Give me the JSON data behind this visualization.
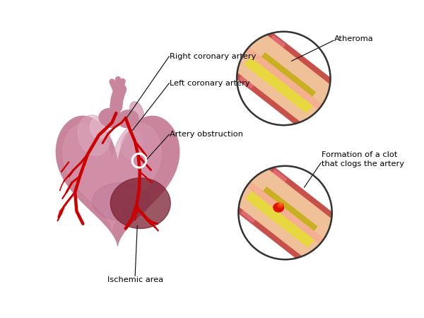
{
  "bg_color": "#ffffff",
  "heart_color_main": "#c8859c",
  "heart_color_light": "#d898b0",
  "heart_color_dark": "#a06880",
  "heart_color_shadow": "#b87090",
  "ischemic_color": "#7a2030",
  "artery_red": "#cc0000",
  "vessel_wall_outer": "#c8504a",
  "vessel_wall_mid": "#e8906a",
  "vessel_lumen": "#f0c098",
  "vessel_pink_end": "#e06870",
  "atheroma_yellow": "#e8d840",
  "atheroma_dark": "#c8b020",
  "clot_red": "#dd1100",
  "clot_bright": "#ff3300",
  "circle_stroke": "#333333",
  "ann_line_color": "#111111",
  "text_color": "#000000",
  "labels": {
    "right_coronary": "Right coronary artery",
    "left_coronary": "Left coronary artery",
    "artery_obstruction": "Artery obstruction",
    "ischemic_area": "Ischemic area",
    "atheroma": "Atheroma",
    "clot_formation": "Formation of a clot\nthat clogs the artery"
  },
  "c1x": 0.735,
  "c1y": 0.755,
  "c1r": 0.148,
  "c2x": 0.74,
  "c2y": 0.33,
  "c2r": 0.148,
  "figsize": [
    6.0,
    4.5
  ],
  "dpi": 100
}
